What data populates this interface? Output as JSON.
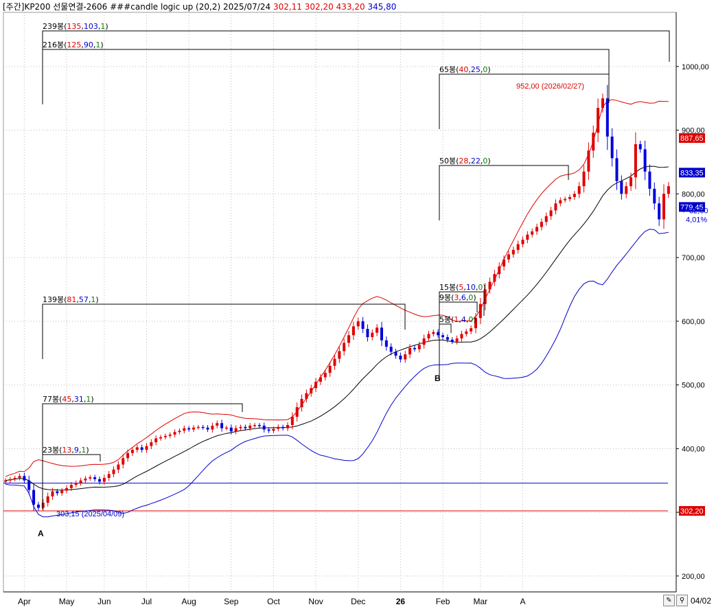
{
  "header": {
    "prefix": "[주간]KP200 선물연결-2606 ###candle logic up  (20,2) 2025/07/24",
    "open": "302,11",
    "low": "302,20",
    "high": "433,20",
    "close": "345,80",
    "color_black": "#000000",
    "color_red": "#dd0000",
    "color_blue": "#0000cc"
  },
  "colors": {
    "up_candle": "#e00000",
    "down_candle": "#0000dd",
    "upper_band": "#dd0000",
    "lower_band": "#0000cc",
    "mid_band": "#000000",
    "grid": "#bbbbbb"
  },
  "chart_data": {
    "type": "candlestick",
    "title": "",
    "y_axis": {
      "ticks": [
        "200,00",
        "300,00",
        "400,00",
        "500,00",
        "600,00",
        "700,00",
        "800,00",
        "900,00",
        "1000,00"
      ],
      "range": [
        175,
        1085
      ],
      "side": "right"
    },
    "x_axis": {
      "labels": [
        "Apr",
        "May",
        "Jun",
        "Jul",
        "Aug",
        "Sep",
        "Oct",
        "Nov",
        "Dec",
        "26",
        "Feb",
        "Mar",
        "A"
      ],
      "end_label": "04/02"
    },
    "price_tags": [
      {
        "text": "887,65",
        "value": 887.65,
        "color": "#dd0000"
      },
      {
        "text": "833,35",
        "value": 833.35,
        "color": "#0000cc"
      },
      {
        "text": "800,00",
        "value": 800.0,
        "color": "#000000"
      },
      {
        "text": "779,45",
        "value": 779.45,
        "color": "#0000cc"
      },
      {
        "text": "302,20",
        "value": 302.2,
        "color": "#dd0000"
      }
    ],
    "change": {
      "value": "32,60",
      "percent": "4,01%",
      "direction": "down"
    },
    "hlines": [
      {
        "value": 345.8,
        "color": "#0000cc"
      },
      {
        "value": 302.2,
        "color": "#dd0000"
      }
    ],
    "annotations": {
      "high_label": "952,00 (2026/02/27)",
      "low_label": "303,15 (2025/04/09)",
      "point_a": "A",
      "point_b": "B",
      "spans": [
        {
          "label": "239봉",
          "counts": [
            "135",
            "103",
            "1"
          ]
        },
        {
          "label": "216봉",
          "counts": [
            "125",
            "90",
            "1"
          ]
        },
        {
          "label": "139봉",
          "counts": [
            "81",
            "57",
            "1"
          ]
        },
        {
          "label": "77봉",
          "counts": [
            "45",
            "31",
            "1"
          ]
        },
        {
          "label": "23봉",
          "counts": [
            "13",
            "9",
            "1"
          ]
        },
        {
          "label": "65봉",
          "counts": [
            "40",
            "25",
            "0"
          ]
        },
        {
          "label": "50봉",
          "counts": [
            "28",
            "22",
            "0"
          ]
        },
        {
          "label": "15봉",
          "counts": [
            "5",
            "10",
            "0"
          ]
        },
        {
          "label": "9봉",
          "counts": [
            "3",
            "6",
            "0"
          ]
        },
        {
          "label": "5봉",
          "counts": [
            "1",
            "4",
            "0"
          ]
        }
      ]
    },
    "weekly_close": [
      350,
      352,
      354,
      357,
      350,
      335,
      312,
      307,
      315,
      325,
      333,
      330,
      334,
      338,
      343,
      346,
      350,
      353,
      355,
      352,
      348,
      354,
      360,
      367,
      375,
      385,
      393,
      398,
      402,
      398,
      404,
      410,
      416,
      418,
      420,
      422,
      426,
      428,
      432,
      430,
      433,
      434,
      433,
      430,
      436,
      440,
      432,
      433,
      427,
      432,
      434,
      432,
      436,
      437,
      436,
      430,
      428,
      431,
      434,
      432,
      437,
      450,
      465,
      478,
      487,
      495,
      505,
      512,
      519,
      530,
      541,
      553,
      566,
      578,
      592,
      600,
      588,
      575,
      582,
      590,
      570,
      560,
      552,
      546,
      540,
      548,
      558,
      556,
      563,
      573,
      580,
      583,
      578,
      575,
      571,
      568,
      573,
      580,
      584,
      589,
      605,
      627,
      650,
      662,
      674,
      686,
      697,
      705,
      712,
      721,
      728,
      736,
      741,
      748,
      756,
      765,
      774,
      785,
      790,
      792,
      795,
      800,
      812,
      835,
      868,
      896,
      935,
      950,
      890,
      856,
      820,
      800,
      812,
      826,
      878,
      870,
      835,
      808,
      785,
      760,
      800,
      812
    ]
  }
}
